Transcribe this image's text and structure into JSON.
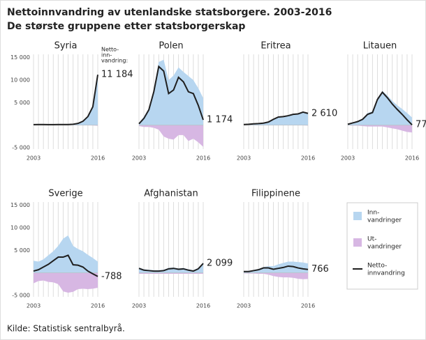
{
  "title": "Nettoinnvandring av utenlandske statsborgere. 2003-2016",
  "subtitle": "De største gruppene etter statsborgerskap",
  "source": "Kilde: Statistisk sentralbyrå.",
  "annotation": {
    "lines": [
      "Netto-",
      "inn-",
      "vandring:"
    ]
  },
  "legend": [
    {
      "lines": [
        "Inn-",
        "vandringer"
      ],
      "color": "#b7d6f0"
    },
    {
      "lines": [
        "Ut-",
        "vandringer"
      ],
      "color": "#d7b7e3"
    },
    {
      "lines": [
        "Netto-",
        "innvandring"
      ],
      "color": "#1f1f1f"
    }
  ],
  "chart_data": [
    {
      "type": "area",
      "title": "Syria",
      "x": [
        2003,
        2004,
        2005,
        2006,
        2007,
        2008,
        2009,
        2010,
        2011,
        2012,
        2013,
        2014,
        2015,
        2016
      ],
      "xlim": [
        2003,
        2016
      ],
      "xticks": [
        2003,
        2016
      ],
      "ylim": [
        -5300,
        15700
      ],
      "yticks": [
        {
          "value": -5000,
          "label": "-5 000"
        },
        {
          "value": 5000,
          "label": "5 000"
        },
        {
          "value": 10000,
          "label": "10 000"
        },
        {
          "value": 15000,
          "label": "15 000"
        }
      ],
      "grid": true,
      "series": [
        {
          "values": [
            140,
            170,
            160,
            150,
            150,
            160,
            170,
            160,
            230,
            420,
            900,
            1950,
            4150,
            11300
          ]
        },
        {
          "values": [
            -20,
            -20,
            -20,
            -20,
            -20,
            -20,
            -20,
            -20,
            -20,
            -30,
            -30,
            -40,
            -60,
            -120
          ]
        },
        {
          "values": [
            120,
            150,
            140,
            130,
            130,
            140,
            150,
            140,
            210,
            390,
            870,
            1910,
            4090,
            11184
          ],
          "value_labels": [
            null,
            null,
            null,
            null,
            null,
            null,
            null,
            null,
            null,
            null,
            null,
            null,
            null,
            "11 184"
          ]
        }
      ]
    },
    {
      "type": "area",
      "title": "Polen",
      "x": [
        2003,
        2004,
        2005,
        2006,
        2007,
        2008,
        2009,
        2010,
        2011,
        2012,
        2013,
        2014,
        2015,
        2016
      ],
      "xlim": [
        2003,
        2016
      ],
      "xticks": [
        2003,
        2016
      ],
      "ylim": [
        -5300,
        15700
      ],
      "grid": true,
      "series": [
        {
          "values": [
            500,
            1900,
            3800,
            8000,
            14000,
            14500,
            10000,
            11000,
            12800,
            11800,
            10900,
            10000,
            8200,
            6000
          ]
        },
        {
          "values": [
            -200,
            -400,
            -400,
            -600,
            -1000,
            -2500,
            -3000,
            -3200,
            -2200,
            -2200,
            -3500,
            -3000,
            -3800,
            -4800
          ]
        },
        {
          "values": [
            300,
            1500,
            3400,
            7400,
            13000,
            12000,
            7000,
            7800,
            10600,
            9600,
            7400,
            7000,
            4400,
            1174
          ],
          "value_labels": [
            null,
            null,
            null,
            null,
            null,
            null,
            null,
            null,
            null,
            null,
            null,
            null,
            null,
            "1 174"
          ]
        }
      ]
    },
    {
      "type": "area",
      "title": "Eritrea",
      "x": [
        2003,
        2004,
        2005,
        2006,
        2007,
        2008,
        2009,
        2010,
        2011,
        2012,
        2013,
        2014,
        2015,
        2016
      ],
      "xlim": [
        2003,
        2016
      ],
      "xticks": [
        2003,
        2016
      ],
      "ylim": [
        -5300,
        15700
      ],
      "grid": true,
      "series": [
        {
          "values": [
            200,
            250,
            350,
            400,
            500,
            750,
            1350,
            1850,
            1950,
            2150,
            2450,
            2550,
            2950,
            2700
          ]
        },
        {
          "values": [
            -50,
            -50,
            -50,
            -50,
            -50,
            -50,
            -50,
            -50,
            -50,
            -50,
            -50,
            -50,
            -50,
            -90
          ]
        },
        {
          "values": [
            150,
            200,
            300,
            350,
            450,
            700,
            1300,
            1800,
            1900,
            2100,
            2400,
            2500,
            2900,
            2610
          ],
          "value_labels": [
            null,
            null,
            null,
            null,
            null,
            null,
            null,
            null,
            null,
            null,
            null,
            null,
            null,
            "2 610"
          ]
        }
      ]
    },
    {
      "type": "area",
      "title": "Litauen",
      "x": [
        2003,
        2004,
        2005,
        2006,
        2007,
        2008,
        2009,
        2010,
        2011,
        2012,
        2013,
        2014,
        2015,
        2016
      ],
      "xlim": [
        2003,
        2016
      ],
      "xticks": [
        2003,
        2016
      ],
      "ylim": [
        -5300,
        15700
      ],
      "grid": true,
      "series": [
        {
          "values": [
            250,
            600,
            900,
            1500,
            2700,
            3100,
            6000,
            7600,
            6600,
            5400,
            4400,
            3600,
            2700,
            1700
          ]
        },
        {
          "values": [
            -50,
            -100,
            -100,
            -200,
            -300,
            -300,
            -300,
            -300,
            -500,
            -700,
            -900,
            -1200,
            -1500,
            -1620
          ]
        },
        {
          "values": [
            200,
            500,
            800,
            1300,
            2400,
            2800,
            5700,
            7300,
            6100,
            4700,
            3500,
            2400,
            1200,
            77
          ],
          "value_labels": [
            null,
            null,
            null,
            null,
            null,
            null,
            null,
            null,
            null,
            null,
            null,
            null,
            null,
            "77"
          ]
        }
      ]
    },
    {
      "type": "area",
      "title": "Sverige",
      "x": [
        2003,
        2004,
        2005,
        2006,
        2007,
        2008,
        2009,
        2010,
        2011,
        2012,
        2013,
        2014,
        2015,
        2016
      ],
      "xlim": [
        2003,
        2016
      ],
      "xticks": [
        2003,
        2016
      ],
      "ylim": [
        -5300,
        15700
      ],
      "yticks": [
        {
          "value": -5000,
          "label": "-5 000"
        },
        {
          "value": 5000,
          "label": "5 000"
        },
        {
          "value": 10000,
          "label": "10 000"
        },
        {
          "value": 15000,
          "label": "15 000"
        }
      ],
      "grid": true,
      "series": [
        {
          "values": [
            2700,
            2500,
            3000,
            3900,
            4800,
            6000,
            7600,
            8300,
            6000,
            5300,
            4800,
            4000,
            3300,
            2500
          ]
        },
        {
          "values": [
            -2300,
            -1800,
            -1700,
            -2000,
            -2100,
            -2500,
            -4100,
            -4400,
            -4200,
            -3600,
            -3500,
            -3600,
            -3500,
            -3288
          ]
        },
        {
          "values": [
            400,
            700,
            1300,
            1900,
            2700,
            3500,
            3500,
            3900,
            1800,
            1700,
            1300,
            400,
            -200,
            -788
          ],
          "value_labels": [
            null,
            null,
            null,
            null,
            null,
            null,
            null,
            null,
            null,
            null,
            null,
            null,
            null,
            "-788"
          ]
        }
      ]
    },
    {
      "type": "area",
      "title": "Afghanistan",
      "x": [
        2003,
        2004,
        2005,
        2006,
        2007,
        2008,
        2009,
        2010,
        2011,
        2012,
        2013,
        2014,
        2015,
        2016
      ],
      "xlim": [
        2003,
        2016
      ],
      "xticks": [
        2003,
        2016
      ],
      "ylim": [
        -5300,
        15700
      ],
      "grid": true,
      "series": [
        {
          "values": [
            1200,
            800,
            700,
            600,
            600,
            700,
            1100,
            1200,
            1000,
            1100,
            800,
            600,
            1100,
            2300
          ]
        },
        {
          "values": [
            -200,
            -200,
            -200,
            -200,
            -200,
            -200,
            -200,
            -200,
            -200,
            -200,
            -200,
            -200,
            -200,
            -200
          ]
        },
        {
          "values": [
            1000,
            600,
            500,
            400,
            400,
            500,
            900,
            1000,
            800,
            900,
            600,
            400,
            900,
            2099
          ],
          "value_labels": [
            null,
            null,
            null,
            null,
            null,
            null,
            null,
            null,
            null,
            null,
            null,
            null,
            null,
            "2 099"
          ]
        }
      ]
    },
    {
      "type": "area",
      "title": "Filippinene",
      "x": [
        2003,
        2004,
        2005,
        2006,
        2007,
        2008,
        2009,
        2010,
        2011,
        2012,
        2013,
        2014,
        2015,
        2016
      ],
      "xlim": [
        2003,
        2016
      ],
      "xticks": [
        2003,
        2016
      ],
      "ylim": [
        -5300,
        15700
      ],
      "grid": true,
      "series": [
        {
          "values": [
            400,
            450,
            650,
            900,
            1300,
            1500,
            1500,
            1900,
            2200,
            2500,
            2500,
            2400,
            2300,
            2100
          ]
        },
        {
          "values": [
            -100,
            -150,
            -150,
            -200,
            -200,
            -400,
            -700,
            -900,
            -1000,
            -1000,
            -1100,
            -1300,
            -1400,
            -1334
          ]
        },
        {
          "values": [
            300,
            300,
            500,
            700,
            1100,
            1100,
            800,
            1000,
            1200,
            1500,
            1400,
            1100,
            900,
            766
          ],
          "value_labels": [
            null,
            null,
            null,
            null,
            null,
            null,
            null,
            null,
            null,
            null,
            null,
            null,
            null,
            "766"
          ]
        }
      ]
    }
  ]
}
